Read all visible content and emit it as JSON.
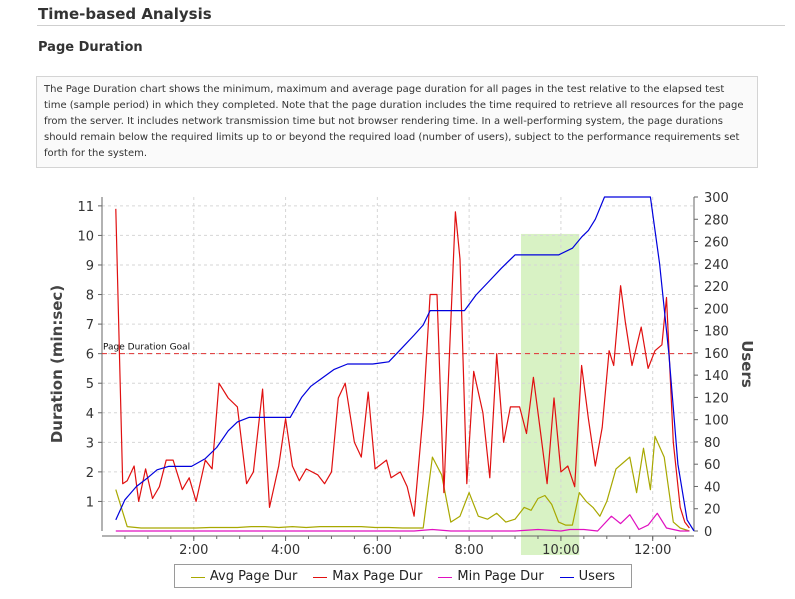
{
  "page": {
    "section_title": "Time-based Analysis",
    "subsection_title": "Page Duration",
    "description": "The Page Duration chart shows the minimum, maximum and average page duration for all pages in the test relative to the elapsed test time (sample period) in which they completed. Note that the page duration includes the time required to retrieve all resources for the page from the server. It includes network transmission time but not browser rendering time. In a well-performing system, the page durations should remain below the required limits up to or beyond the required load (number of users), subject to the performance requirements set forth for the system."
  },
  "chart_data": {
    "type": "line",
    "ylabel": "Duration (min:sec)",
    "y2label": "Users",
    "xlim": [
      0,
      12.9
    ],
    "ylim": [
      0,
      11.3
    ],
    "y2lim": [
      0,
      300
    ],
    "x_ticks": [
      {
        "v": 2,
        "label": "2:00"
      },
      {
        "v": 4,
        "label": "4:00"
      },
      {
        "v": 6,
        "label": "6:00"
      },
      {
        "v": 8,
        "label": "8:00"
      },
      {
        "v": 10,
        "label": "10:00"
      },
      {
        "v": 12,
        "label": "12:00"
      }
    ],
    "y_ticks": [
      1,
      2,
      3,
      4,
      5,
      6,
      7,
      8,
      9,
      10,
      11
    ],
    "y2_ticks": [
      0,
      20,
      40,
      60,
      80,
      100,
      120,
      140,
      160,
      180,
      200,
      220,
      240,
      260,
      280,
      300
    ],
    "grid": true,
    "legend_position": "bottom",
    "goal": {
      "label": "Page Duration Goal",
      "value": 6,
      "color": "#e03030"
    },
    "highlight": {
      "x_start": 9.13,
      "x_end": 10.4,
      "y_top": 10.05,
      "color": "#d8f2c4"
    },
    "series": [
      {
        "name": "Avg Page Dur",
        "axis": "left",
        "color": "#a8a800",
        "x": [
          0.3,
          0.55,
          0.85,
          1.15,
          1.45,
          1.75,
          2.05,
          2.35,
          2.65,
          2.95,
          3.25,
          3.55,
          3.85,
          4.15,
          4.45,
          4.75,
          5.05,
          5.35,
          5.65,
          5.95,
          6.25,
          6.55,
          6.85,
          7.0,
          7.2,
          7.4,
          7.6,
          7.8,
          8.0,
          8.2,
          8.4,
          8.6,
          8.8,
          9.0,
          9.2,
          9.35,
          9.5,
          9.65,
          9.8,
          9.95,
          10.1,
          10.25,
          10.4,
          10.55,
          10.7,
          10.85,
          11.0,
          11.2,
          11.35,
          11.5,
          11.65,
          11.8,
          11.95,
          12.05,
          12.25,
          12.45,
          12.6,
          12.8
        ],
        "y": [
          1.4,
          0.15,
          0.1,
          0.1,
          0.1,
          0.1,
          0.1,
          0.12,
          0.12,
          0.12,
          0.15,
          0.15,
          0.12,
          0.15,
          0.12,
          0.15,
          0.15,
          0.15,
          0.15,
          0.12,
          0.12,
          0.1,
          0.1,
          0.1,
          2.5,
          1.9,
          0.3,
          0.5,
          1.3,
          0.5,
          0.4,
          0.6,
          0.3,
          0.4,
          0.8,
          0.7,
          1.1,
          1.2,
          0.9,
          0.3,
          0.2,
          0.2,
          1.3,
          1.0,
          0.8,
          0.5,
          1.0,
          2.1,
          2.3,
          2.5,
          1.3,
          2.8,
          1.4,
          3.2,
          2.5,
          0.3,
          0.1,
          0.0
        ]
      },
      {
        "name": "Max Page Dur",
        "axis": "left",
        "color": "#e01010",
        "x": [
          0.3,
          0.45,
          0.55,
          0.7,
          0.8,
          0.95,
          1.1,
          1.25,
          1.4,
          1.55,
          1.75,
          1.9,
          2.05,
          2.25,
          2.4,
          2.55,
          2.75,
          2.95,
          3.15,
          3.3,
          3.5,
          3.65,
          3.85,
          4.0,
          4.15,
          4.3,
          4.45,
          4.7,
          4.85,
          5.0,
          5.15,
          5.3,
          5.5,
          5.65,
          5.8,
          5.95,
          6.2,
          6.3,
          6.5,
          6.65,
          6.8,
          7.0,
          7.15,
          7.3,
          7.45,
          7.55,
          7.7,
          7.8,
          7.95,
          8.1,
          8.3,
          8.45,
          8.6,
          8.75,
          8.9,
          9.1,
          9.25,
          9.4,
          9.55,
          9.7,
          9.85,
          10.0,
          10.15,
          10.3,
          10.45,
          10.6,
          10.75,
          10.9,
          11.05,
          11.15,
          11.3,
          11.4,
          11.55,
          11.75,
          11.9,
          12.05,
          12.2,
          12.3,
          12.45,
          12.6,
          12.7,
          12.8
        ],
        "y": [
          10.9,
          1.6,
          1.7,
          2.2,
          1.0,
          2.1,
          1.1,
          1.5,
          2.4,
          2.4,
          1.4,
          1.8,
          1.0,
          2.4,
          2.1,
          5.0,
          4.5,
          4.2,
          1.6,
          2.0,
          4.8,
          0.8,
          2.2,
          3.8,
          2.2,
          1.7,
          2.1,
          1.9,
          1.6,
          2.0,
          4.5,
          5.0,
          3.0,
          2.5,
          4.7,
          2.1,
          2.4,
          1.8,
          2.0,
          1.5,
          0.5,
          4.0,
          8.0,
          8.0,
          1.3,
          5.2,
          10.8,
          9.2,
          1.6,
          5.4,
          4.0,
          1.8,
          6.0,
          3.0,
          4.2,
          4.2,
          3.3,
          5.2,
          3.4,
          1.6,
          4.5,
          2.0,
          2.2,
          1.5,
          5.6,
          3.8,
          2.2,
          3.5,
          6.1,
          5.6,
          8.3,
          7.1,
          5.6,
          6.9,
          5.5,
          6.1,
          6.3,
          7.9,
          3.0,
          0.8,
          0.3,
          0.1
        ]
      },
      {
        "name": "Min Page Dur",
        "axis": "left",
        "color": "#e010c0",
        "x": [
          0.3,
          1.5,
          3.0,
          4.5,
          6.0,
          6.8,
          7.2,
          7.6,
          8.0,
          9.0,
          9.5,
          10.0,
          10.2,
          10.5,
          10.8,
          11.1,
          11.3,
          11.5,
          11.7,
          11.9,
          12.1,
          12.3,
          12.6,
          12.8
        ],
        "y": [
          0,
          0,
          0,
          0,
          0,
          0,
          0.05,
          0,
          0,
          0,
          0.05,
          0,
          0.05,
          0.05,
          0,
          0.5,
          0.25,
          0.55,
          0.05,
          0.2,
          0.6,
          0.1,
          0,
          0
        ]
      },
      {
        "name": "Users",
        "axis": "right",
        "color": "#0000dd",
        "x": [
          0.3,
          0.5,
          0.75,
          1.0,
          1.2,
          1.45,
          1.7,
          1.95,
          2.25,
          2.5,
          2.75,
          2.95,
          3.2,
          3.5,
          3.8,
          4.1,
          4.35,
          4.55,
          4.75,
          5.05,
          5.35,
          5.65,
          5.9,
          6.25,
          6.55,
          6.8,
          7.0,
          7.15,
          7.35,
          7.6,
          7.9,
          8.15,
          8.45,
          8.7,
          9.0,
          9.15,
          9.35,
          9.65,
          9.95,
          10.25,
          10.45,
          10.6,
          10.75,
          10.95,
          11.15,
          11.45,
          11.75,
          11.95,
          12.15,
          12.35,
          12.55,
          12.75,
          12.9
        ],
        "y": [
          10,
          28,
          40,
          48,
          55,
          58,
          58,
          58,
          65,
          75,
          90,
          98,
          102,
          102,
          102,
          102,
          120,
          130,
          136,
          145,
          150,
          150,
          150,
          152,
          165,
          176,
          185,
          198,
          198,
          198,
          198,
          212,
          225,
          236,
          248,
          248,
          248,
          248,
          248,
          254,
          264,
          270,
          280,
          300,
          300,
          300,
          300,
          300,
          240,
          160,
          60,
          10,
          0
        ]
      }
    ]
  }
}
